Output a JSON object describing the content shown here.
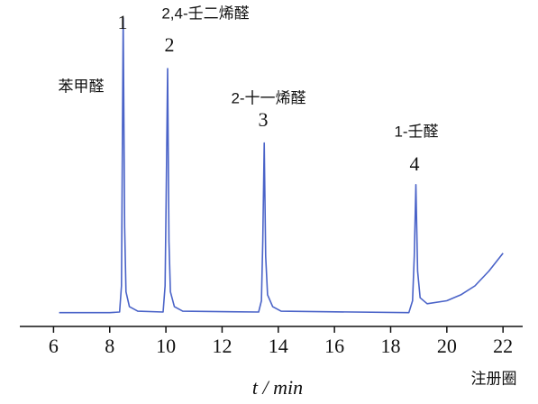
{
  "chart_data": {
    "type": "line",
    "x": [
      6.2,
      8.0,
      8.35,
      8.42,
      8.48,
      8.53,
      8.58,
      8.7,
      9.0,
      9.9,
      9.97,
      10.01,
      10.06,
      10.11,
      10.16,
      10.3,
      10.6,
      13.3,
      13.4,
      13.45,
      13.5,
      13.55,
      13.62,
      13.8,
      14.1,
      18.65,
      18.78,
      18.84,
      18.9,
      18.96,
      19.05,
      19.3,
      20.0,
      20.5,
      21.0,
      21.5,
      22.0
    ],
    "series": [
      {
        "color": "#4a63c8",
        "values": [
          1,
          1,
          1.2,
          10,
          100,
          30,
          8,
          3,
          1.5,
          1.2,
          10,
          40,
          83,
          25,
          8,
          3,
          1.5,
          1.2,
          5,
          25,
          58,
          20,
          7,
          3,
          1.5,
          1,
          5,
          20,
          44,
          15,
          6,
          4,
          5,
          7,
          10,
          15,
          21
        ]
      }
    ],
    "xlim": [
      4.8,
      22.7
    ],
    "ylim": [
      0,
      100
    ],
    "xticks": [
      6,
      8,
      10,
      12,
      14,
      16,
      18,
      20,
      22
    ],
    "x_label": "t / min",
    "annotations": [
      "1",
      "2",
      "3",
      "4",
      "苯甲醛",
      "2,4-壬二烯醛",
      "2-十一烯醛",
      "1-壬醛"
    ]
  },
  "watermark": "注册圈"
}
